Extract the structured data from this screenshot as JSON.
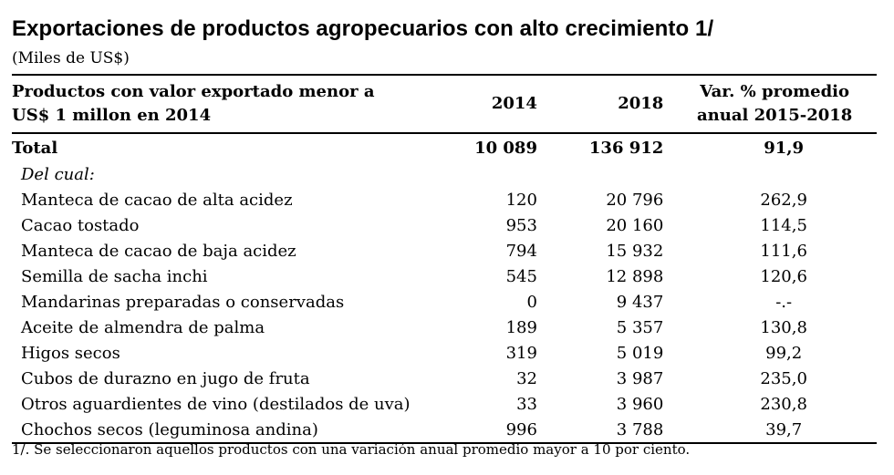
{
  "title": "Exportaciones de productos agropecuarios con alto crecimiento 1/",
  "subtitle": "(Miles de US$)",
  "table": {
    "headers": {
      "product": "Productos con valor exportado menor a US$ 1 millon en 2014",
      "y2014": "2014",
      "y2018": "2018",
      "var": "Var. % promedio anual 2015-2018"
    },
    "total": {
      "label": "Total",
      "y2014": "10 089",
      "y2018": "136 912",
      "var": "91,9"
    },
    "subhead": "Del cual:",
    "rows": [
      {
        "product": "Manteca de cacao de alta acidez",
        "y2014": "120",
        "y2018": "20 796",
        "var": "262,9"
      },
      {
        "product": "Cacao tostado",
        "y2014": "953",
        "y2018": "20 160",
        "var": "114,5"
      },
      {
        "product": "Manteca de cacao de baja acidez",
        "y2014": "794",
        "y2018": "15 932",
        "var": "111,6"
      },
      {
        "product": "Semilla de sacha inchi",
        "y2014": "545",
        "y2018": "12 898",
        "var": "120,6"
      },
      {
        "product": "Mandarinas preparadas o conservadas",
        "y2014": "0",
        "y2018": "9 437",
        "var": "-.-"
      },
      {
        "product": "Aceite de almendra de palma",
        "y2014": "189",
        "y2018": "5 357",
        "var": "130,8"
      },
      {
        "product": "Higos secos",
        "y2014": "319",
        "y2018": "5 019",
        "var": "99,2"
      },
      {
        "product": "Cubos de durazno en jugo de fruta",
        "y2014": "32",
        "y2018": "3 987",
        "var": "235,0"
      },
      {
        "product": "Otros aguardientes de vino (destilados de uva)",
        "y2014": "33",
        "y2018": "3 960",
        "var": "230,8"
      },
      {
        "product": "Chochos secos (leguminosa andina)",
        "y2014": "996",
        "y2018": "3 788",
        "var": "39,7"
      }
    ]
  },
  "footnote": "1/. Se seleccionaron aquellos productos con una variación anual promedio mayor a 10 por ciento."
}
